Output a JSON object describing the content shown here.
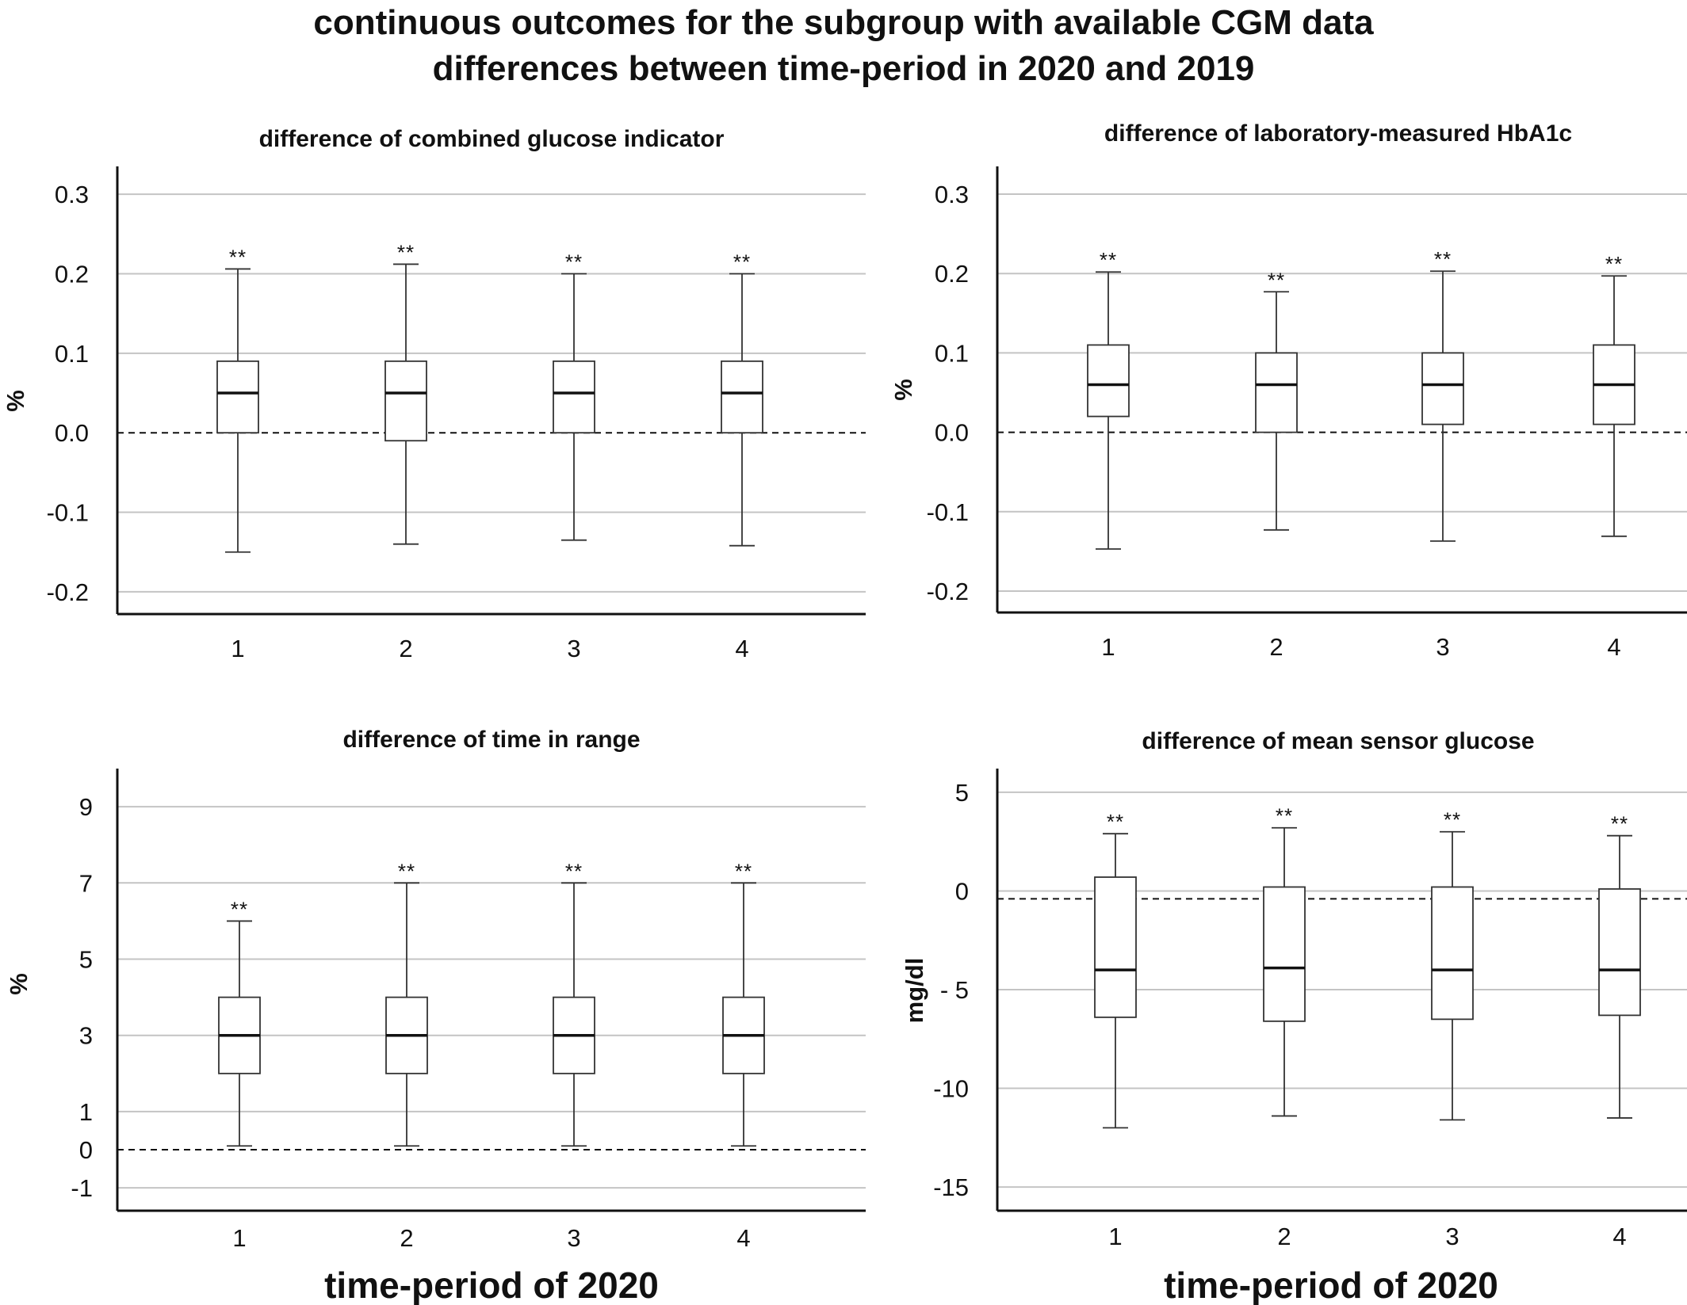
{
  "figure": {
    "title_lines": [
      "continuous outcomes for the subgroup with available CGM data",
      "differences between time-period in 2020 and 2019"
    ]
  },
  "chart_data": [
    {
      "type": "boxplot",
      "title": "difference of combined glucose indicator",
      "ylabel": "%",
      "xlabel": "",
      "categories": [
        "1",
        "2",
        "3",
        "4"
      ],
      "yticks": [
        0.3,
        0.2,
        0.1,
        0.0,
        -0.1,
        -0.2
      ],
      "ytick_labels": [
        "0.3",
        "0.2",
        "0.1",
        "0.0",
        "-0.1",
        "-0.2"
      ],
      "ylim": [
        -0.228,
        0.335
      ],
      "grid": true,
      "reference_line": 0,
      "boxes": [
        {
          "min": -0.15,
          "q1": 0.0,
          "median": 0.05,
          "q3": 0.09,
          "max": 0.206,
          "annotation": "**"
        },
        {
          "min": -0.14,
          "q1": -0.01,
          "median": 0.05,
          "q3": 0.09,
          "max": 0.212,
          "annotation": "**"
        },
        {
          "min": -0.135,
          "q1": 0.0,
          "median": 0.05,
          "q3": 0.09,
          "max": 0.2,
          "annotation": "**"
        },
        {
          "min": -0.142,
          "q1": 0.0,
          "median": 0.05,
          "q3": 0.09,
          "max": 0.2,
          "annotation": "**"
        }
      ]
    },
    {
      "type": "boxplot",
      "title": "difference of laboratory-measured HbA1c",
      "ylabel": "%",
      "xlabel": "",
      "categories": [
        "1",
        "2",
        "3",
        "4"
      ],
      "yticks": [
        0.3,
        0.2,
        0.1,
        0.0,
        -0.1,
        -0.2
      ],
      "ytick_labels": [
        "0.3",
        "0.2",
        "0.1",
        "0.0",
        "-0.1",
        "-0.2"
      ],
      "ylim": [
        -0.227,
        0.335
      ],
      "grid": true,
      "reference_line": 0,
      "boxes": [
        {
          "min": -0.147,
          "q1": 0.02,
          "median": 0.06,
          "q3": 0.11,
          "max": 0.202,
          "annotation": "**"
        },
        {
          "min": -0.123,
          "q1": 0.0,
          "median": 0.06,
          "q3": 0.1,
          "max": 0.177,
          "annotation": "**"
        },
        {
          "min": -0.137,
          "q1": 0.01,
          "median": 0.06,
          "q3": 0.1,
          "max": 0.203,
          "annotation": "**"
        },
        {
          "min": -0.131,
          "q1": 0.01,
          "median": 0.06,
          "q3": 0.11,
          "max": 0.197,
          "annotation": "**"
        }
      ]
    },
    {
      "type": "boxplot",
      "title": "difference of time in range",
      "ylabel": "%",
      "xlabel": "time-period of 2020",
      "categories": [
        "1",
        "2",
        "3",
        "4"
      ],
      "yticks": [
        9,
        7,
        5,
        3,
        1,
        0,
        -1
      ],
      "ytick_labels": [
        "9",
        "7",
        "5",
        "3",
        "1",
        "0",
        "-1"
      ],
      "ylim": [
        -1.6,
        10.0
      ],
      "grid": true,
      "reference_line": 0,
      "boxes": [
        {
          "min": 0.1,
          "q1": 2.0,
          "median": 3.0,
          "q3": 4.0,
          "max": 6.0,
          "annotation": "**"
        },
        {
          "min": 0.1,
          "q1": 2.0,
          "median": 3.0,
          "q3": 4.0,
          "max": 7.0,
          "annotation": "**"
        },
        {
          "min": 0.1,
          "q1": 2.0,
          "median": 3.0,
          "q3": 4.0,
          "max": 7.0,
          "annotation": "**"
        },
        {
          "min": 0.1,
          "q1": 2.0,
          "median": 3.0,
          "q3": 4.0,
          "max": 7.0,
          "annotation": "**"
        }
      ]
    },
    {
      "type": "boxplot",
      "title": "difference of mean sensor glucose",
      "ylabel": "mg/dl",
      "xlabel": "time-period of 2020",
      "categories": [
        "1",
        "2",
        "3",
        "4"
      ],
      "yticks": [
        5,
        0,
        -5,
        -10,
        -15
      ],
      "ytick_labels": [
        "5",
        "0",
        "- 5",
        "-10",
        "-15"
      ],
      "ylim": [
        -16.2,
        6.2
      ],
      "grid": true,
      "reference_line": -0.4,
      "boxes": [
        {
          "min": -12.0,
          "q1": -6.4,
          "median": -4.0,
          "q3": 0.7,
          "max": 2.9,
          "annotation": "**"
        },
        {
          "min": -11.4,
          "q1": -6.6,
          "median": -3.9,
          "q3": 0.2,
          "max": 3.2,
          "annotation": "**"
        },
        {
          "min": -11.6,
          "q1": -6.5,
          "median": -4.0,
          "q3": 0.2,
          "max": 3.0,
          "annotation": "**"
        },
        {
          "min": -11.5,
          "q1": -6.3,
          "median": -4.0,
          "q3": 0.1,
          "max": 2.8,
          "annotation": "**"
        }
      ]
    }
  ]
}
